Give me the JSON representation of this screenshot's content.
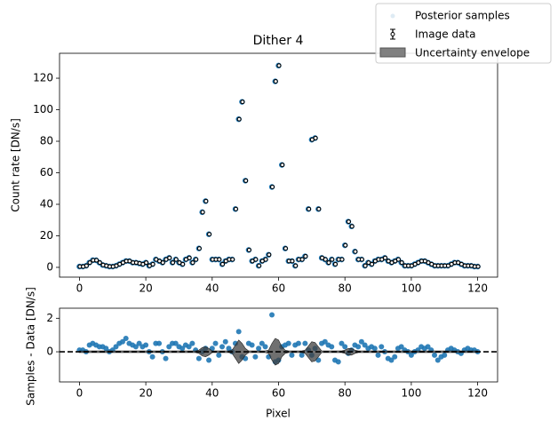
{
  "chart_data": [
    {
      "type": "scatter",
      "title": "Dither 4",
      "ylabel": "Count rate [DN/s]",
      "x": [
        0,
        1,
        2,
        3,
        4,
        5,
        6,
        7,
        8,
        9,
        10,
        11,
        12,
        13,
        14,
        15,
        16,
        17,
        18,
        19,
        20,
        21,
        22,
        23,
        24,
        25,
        26,
        27,
        28,
        29,
        30,
        31,
        32,
        33,
        34,
        35,
        36,
        37,
        38,
        39,
        40,
        41,
        42,
        43,
        44,
        45,
        46,
        47,
        48,
        49,
        50,
        51,
        52,
        53,
        54,
        55,
        56,
        57,
        58,
        59,
        60,
        61,
        62,
        63,
        64,
        65,
        66,
        67,
        68,
        69,
        70,
        71,
        72,
        73,
        74,
        75,
        76,
        77,
        78,
        79,
        80,
        81,
        82,
        83,
        84,
        85,
        86,
        87,
        88,
        89,
        90,
        91,
        92,
        93,
        94,
        95,
        96,
        97,
        98,
        99,
        100,
        101,
        102,
        103,
        104,
        105,
        106,
        107,
        108,
        109,
        110,
        111,
        112,
        113,
        114,
        115,
        116,
        117,
        118,
        119,
        120
      ],
      "series": [
        {
          "name": "Posterior samples",
          "color": "#1f77b4"
        },
        {
          "name": "Image data",
          "color": "#000000",
          "values": [
            0.5,
            0.5,
            1,
            3,
            4.5,
            4.5,
            3,
            1.5,
            1,
            0.5,
            0.5,
            1,
            2,
            3,
            4,
            4,
            3,
            3,
            2.5,
            2,
            3,
            1,
            2,
            5,
            4,
            3,
            5,
            6,
            3,
            5,
            3,
            2,
            5,
            6,
            3,
            5,
            12,
            35,
            42,
            21,
            5,
            5,
            5,
            2,
            4,
            5,
            5,
            37,
            94,
            105,
            55,
            11,
            4,
            5,
            1,
            4,
            5,
            8,
            51,
            118,
            128,
            65,
            12,
            4,
            4,
            1,
            5,
            5,
            7,
            37,
            81,
            82,
            37,
            6,
            5,
            3,
            5,
            2,
            5,
            5,
            14,
            29,
            26,
            10,
            5,
            5,
            1,
            3,
            2,
            4,
            5,
            5,
            6,
            4,
            3,
            4,
            5,
            3,
            1,
            1,
            1,
            2,
            3,
            4,
            4,
            3,
            2,
            1,
            1,
            1,
            1,
            1,
            2,
            3,
            3,
            2,
            1,
            1,
            1,
            0.5,
            0.5
          ]
        },
        {
          "name": "Uncertainty envelope",
          "color": "#808080"
        }
      ],
      "xlim": [
        -6,
        126
      ],
      "xticks": [
        0,
        20,
        40,
        60,
        80,
        100,
        120
      ],
      "ylim": [
        -6.2,
        135.8
      ],
      "yticks": [
        0,
        20,
        40,
        60,
        80,
        100,
        120
      ]
    },
    {
      "type": "residual",
      "xlabel": "Pixel",
      "ylabel": "Samples - Data [DN/s]",
      "series": [
        {
          "color": "#1f77b4",
          "values": [
            0.1,
            0.1,
            0,
            0.4,
            0.5,
            0.4,
            0.3,
            0.3,
            0.2,
            0,
            0.1,
            0.3,
            0.5,
            0.6,
            0.8,
            0.5,
            0.4,
            0.3,
            0.5,
            0.3,
            0.4,
            0,
            -0.3,
            0.5,
            0.5,
            0,
            -0.4,
            0.3,
            0.5,
            0.5,
            0.3,
            0.2,
            0.4,
            0.3,
            0.5,
            0.1,
            -0.4,
            0,
            0.2,
            -0.5,
            0.2,
            0.5,
            -0.2,
            0.3,
            0.6,
            0.2,
            0,
            0.5,
            1.2,
            -0.3,
            -0.4,
            0.5,
            0.4,
            -0.3,
            0.2,
            0.5,
            0.3,
            -0.3,
            2.2,
            -0.6,
            -0.5,
            0.3,
            0.4,
            0.5,
            -0.2,
            0.4,
            0.5,
            -0.2,
            0.5,
            0.1,
            -0.2,
            0.2,
            -0.5,
            0.5,
            0.6,
            0.4,
            0.3,
            -0.5,
            -0.6,
            0.5,
            0.3,
            -0.1,
            0.1,
            0.4,
            0.3,
            0.6,
            0.4,
            0.2,
            0.3,
            0.2,
            -0.2,
            0.3,
            0,
            -0.4,
            -0.5,
            -0.3,
            0.2,
            0.3,
            0.1,
            0,
            -0.2,
            0,
            0.1,
            0.3,
            0.2,
            0.3,
            0.1,
            -0.2,
            -0.5,
            -0.3,
            -0.2,
            0.1,
            0.2,
            0.1,
            0,
            -0.1,
            0.1,
            0.2,
            0.1,
            0.1,
            0
          ]
        },
        {
          "color": "#404040",
          "values": [
            0.05,
            0.05,
            0.05,
            0.05,
            0.05,
            0.05,
            0.05,
            0.05,
            0.05,
            0.05,
            0.05,
            0.05,
            0.05,
            0.05,
            0.05,
            0.05,
            0.05,
            0.05,
            0.05,
            0.05,
            0.05,
            0.05,
            0.05,
            0.05,
            0.05,
            0.05,
            0.05,
            0.05,
            0.05,
            0.05,
            0.05,
            0.05,
            0.05,
            0.05,
            0.05,
            0.05,
            0.1,
            0.25,
            0.3,
            0.2,
            0.05,
            0.05,
            0.05,
            0.05,
            0.05,
            0.05,
            0.1,
            0.4,
            0.7,
            0.5,
            0.2,
            0.05,
            0.05,
            0.05,
            0.05,
            0.05,
            0.05,
            0.1,
            0.5,
            0.8,
            0.7,
            0.3,
            0.1,
            0.05,
            0.05,
            0.05,
            0.05,
            0.05,
            0.1,
            0.35,
            0.6,
            0.55,
            0.3,
            0.05,
            0.05,
            0.05,
            0.05,
            0.05,
            0.05,
            0.05,
            0.1,
            0.2,
            0.2,
            0.1,
            0.05,
            0.05,
            0.05,
            0.05,
            0.05,
            0.05,
            0.05,
            0.05,
            0.05,
            0.05,
            0.05,
            0.05,
            0.05,
            0.05,
            0.05,
            0.05,
            0.05,
            0.05,
            0.05,
            0.05,
            0.05,
            0.05,
            0.05,
            0.05,
            0.05,
            0.05,
            0.05,
            0.05,
            0.05,
            0.05,
            0.05,
            0.05,
            0.05,
            0.05,
            0.05,
            0.05,
            0.05
          ]
        }
      ],
      "reference_line": 0,
      "xlim": [
        -6,
        126
      ],
      "xticks": [
        0,
        20,
        40,
        60,
        80,
        100,
        120
      ],
      "ylim": [
        -1.8,
        2.6
      ],
      "yticks": [
        0,
        2
      ]
    }
  ]
}
